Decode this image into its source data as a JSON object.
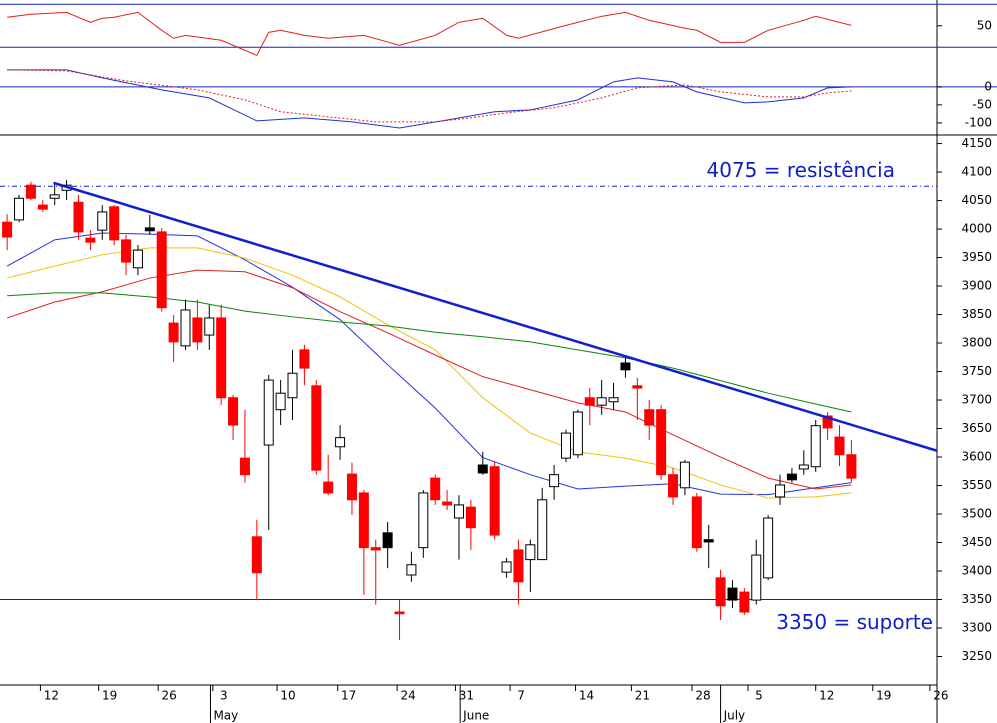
{
  "chart_data": [
    {
      "type": "line",
      "ylim": [
        20,
        74
      ],
      "yticks": [
        50
      ],
      "levels": [
        30,
        70
      ],
      "series": [
        {
          "color": "#e02020",
          "x": [
            0,
            2,
            5,
            7,
            8,
            9,
            11,
            13,
            14,
            15,
            18,
            21,
            22,
            23,
            25,
            27,
            30,
            33,
            36,
            38,
            40,
            42,
            43,
            47,
            50,
            52,
            54,
            57,
            58,
            60,
            62,
            64,
            67,
            68,
            71
          ],
          "values": [
            57.9,
            60.7,
            62.5,
            53.2,
            57,
            57.9,
            62.5,
            45.8,
            38.4,
            41.1,
            36.5,
            22.5,
            43.9,
            45.8,
            41.1,
            38.4,
            41.1,
            31.8,
            41.1,
            53.2,
            57,
            41.1,
            38.4,
            50.4,
            58.8,
            62.5,
            55.1,
            47.7,
            45.8,
            34.6,
            34.6,
            45.8,
            55.1,
            58.8,
            50.4
          ]
        }
      ]
    },
    {
      "type": "line",
      "ylim": [
        -128,
        69
      ],
      "yticks": [
        0,
        -50,
        -100
      ],
      "levels": [
        0
      ],
      "series": [
        {
          "color": "#2030d0",
          "x": [
            0,
            5,
            8,
            13,
            17,
            21,
            25,
            29,
            33,
            37,
            41,
            44,
            48,
            51,
            53,
            56,
            58,
            62,
            64,
            67,
            69,
            71
          ],
          "values": [
            47.2,
            47.2,
            25,
            -8.3,
            -30.6,
            -94.4,
            -86,
            -97,
            -114,
            -92,
            -69,
            -64,
            -36,
            13.9,
            25,
            13.9,
            -13.9,
            -44.4,
            -41.7,
            -30.6,
            -2.8,
            0
          ]
        },
        {
          "color": "#e02020",
          "dash": true,
          "x": [
            0,
            5,
            10,
            16,
            20,
            23,
            27,
            31,
            36,
            39,
            42,
            46,
            50,
            53,
            57,
            60,
            64,
            67,
            69,
            71
          ],
          "values": [
            47.2,
            44.4,
            16.7,
            -8.3,
            -36,
            -69,
            -83,
            -97,
            -97,
            -86,
            -72,
            -58,
            -30.6,
            -2.8,
            5.6,
            -13.9,
            -27.8,
            -27.8,
            -16.7,
            -11.1
          ]
        }
      ]
    },
    {
      "type": "candlestick",
      "xlim": [
        -0.6,
        78.2
      ],
      "ylim": [
        3200,
        4165
      ],
      "yticks": [
        3250,
        3300,
        3350,
        3400,
        3450,
        3500,
        3550,
        3600,
        3650,
        3700,
        3750,
        3800,
        3850,
        3900,
        3950,
        4000,
        4050,
        4100,
        4150
      ],
      "xticks": [
        {
          "value": 2.8,
          "label": "12"
        },
        {
          "value": 7.7,
          "label": "19"
        },
        {
          "value": 12.7,
          "label": "26"
        },
        {
          "value": 17.3,
          "label": "3"
        },
        {
          "value": 22.7,
          "label": "10"
        },
        {
          "value": 27.8,
          "label": "17"
        },
        {
          "value": 32.8,
          "label": "24"
        },
        {
          "value": 37.7,
          "label": "31"
        },
        {
          "value": 42.3,
          "label": "7"
        },
        {
          "value": 47.8,
          "label": "14"
        },
        {
          "value": 52.5,
          "label": "21"
        },
        {
          "value": 57.6,
          "label": "28"
        },
        {
          "value": 62.3,
          "label": "5"
        },
        {
          "value": 68,
          "label": "12"
        },
        {
          "value": 72.8,
          "label": "19"
        },
        {
          "value": 77.6,
          "label": "26"
        }
      ],
      "months": [
        {
          "value": 17.1,
          "label": "May"
        },
        {
          "value": 38.1,
          "label": "June"
        },
        {
          "value": 60,
          "label": "July"
        }
      ],
      "open": [
        4012,
        4016,
        4077,
        4042,
        4054,
        4068,
        4047,
        3984,
        3998,
        4039,
        3981,
        3932,
        4002,
        3995,
        3835,
        3795,
        3844,
        3814,
        3844,
        3704,
        3598,
        3460,
        3621,
        3683,
        3704,
        3788,
        3725,
        3556,
        3618,
        3570,
        3537,
        3441,
        3467,
        3328,
        3393,
        3441,
        3563,
        3521,
        3493,
        3512,
        3586,
        3583,
        3398,
        3437,
        3420,
        3420,
        3548,
        3598,
        3604,
        3704,
        3691,
        3697,
        3765,
        3725,
        3683,
        3683,
        3569,
        3546,
        3530,
        3455,
        3388,
        3370,
        3363,
        3349,
        3388,
        3530,
        3570,
        3579,
        3583,
        3672,
        3635,
        3604
      ],
      "high": [
        4026,
        4060,
        4083,
        4051,
        4081,
        4086,
        4060,
        3998,
        4042,
        4042,
        3990,
        3972,
        4025,
        4002,
        3849,
        3876,
        3876,
        3867,
        3867,
        3709,
        3683,
        3490,
        3744,
        3735,
        3788,
        3797,
        3735,
        3604,
        3656,
        3590,
        3542,
        3455,
        3486,
        3349,
        3434,
        3542,
        3569,
        3542,
        3533,
        3525,
        3609,
        3591,
        3423,
        3455,
        3455,
        3546,
        3586,
        3648,
        3683,
        3721,
        3735,
        3730,
        3779,
        3739,
        3700,
        3691,
        3581,
        3595,
        3537,
        3481,
        3402,
        3384,
        3370,
        3455,
        3498,
        3569,
        3581,
        3612,
        3665,
        3679,
        3656,
        3630
      ],
      "low": [
        3963,
        4012,
        4051,
        4030,
        4042,
        4051,
        3981,
        3963,
        3981,
        3972,
        3919,
        3919,
        3990,
        3855,
        3767,
        3788,
        3788,
        3788,
        3691,
        3630,
        3555,
        3349,
        3472,
        3656,
        3665,
        3726,
        3569,
        3533,
        3595,
        3498,
        3358,
        3341,
        3405,
        3279,
        3381,
        3423,
        3516,
        3507,
        3420,
        3437,
        3569,
        3455,
        3388,
        3341,
        3363,
        3420,
        3525,
        3591,
        3598,
        3656,
        3674,
        3683,
        3739,
        3665,
        3630,
        3560,
        3516,
        3533,
        3434,
        3405,
        3314,
        3335,
        3323,
        3341,
        3384,
        3516,
        3555,
        3569,
        3574,
        3630,
        3584,
        3556
      ],
      "close": [
        3986,
        4054,
        4054,
        4035,
        4060,
        4077,
        3995,
        3977,
        4030,
        3981,
        3942,
        3963,
        3997,
        3862,
        3802,
        3858,
        3802,
        3844,
        3704,
        3656,
        3569,
        3397,
        3735,
        3712,
        3747,
        3756,
        3577,
        3537,
        3634,
        3525,
        3441,
        3437,
        3441,
        3325,
        3411,
        3537,
        3525,
        3516,
        3516,
        3476,
        3572,
        3463,
        3416,
        3381,
        3446,
        3525,
        3569,
        3642,
        3679,
        3691,
        3704,
        3704,
        3753,
        3721,
        3656,
        3569,
        3530,
        3591,
        3441,
        3451,
        3339,
        3349,
        3328,
        3428,
        3493,
        3551,
        3560,
        3586,
        3655,
        3651,
        3604,
        3563
      ],
      "colors": [
        "red",
        "black",
        "red",
        "red",
        "black",
        "black",
        "red",
        "red",
        "black",
        "red",
        "red",
        "black",
        "black",
        "red",
        "red",
        "black",
        "red",
        "black",
        "red",
        "red",
        "red",
        "red",
        "black",
        "black",
        "black",
        "red",
        "red",
        "red",
        "black",
        "red",
        "red",
        "red",
        "black",
        "red",
        "black",
        "black",
        "red",
        "red",
        "black",
        "red",
        "black",
        "red",
        "black",
        "red",
        "black",
        "black",
        "black",
        "black",
        "black",
        "red",
        "black",
        "black",
        "black",
        "red",
        "red",
        "red",
        "red",
        "black",
        "red",
        "black",
        "red",
        "black",
        "red",
        "black",
        "black",
        "black",
        "black",
        "black",
        "black",
        "red",
        "red",
        "red"
      ],
      "lines": [
        {
          "color": "#2233dd",
          "x": [
            0,
            4,
            8,
            12,
            16,
            20,
            24,
            28,
            32,
            36,
            40,
            44,
            48,
            52,
            56,
            60,
            64,
            68,
            71
          ],
          "values": [
            3935,
            3981,
            3993,
            3991,
            3988,
            3946,
            3898,
            3841,
            3762,
            3686,
            3599,
            3569,
            3544,
            3549,
            3553,
            3535,
            3534,
            3546,
            3555
          ]
        },
        {
          "color": "#f5c000",
          "x": [
            0,
            4,
            8,
            12,
            16,
            20,
            24,
            28,
            32,
            36,
            40,
            44,
            48,
            52,
            56,
            60,
            64,
            68,
            71
          ],
          "values": [
            3914,
            3935,
            3955,
            3967,
            3967,
            3949,
            3919,
            3881,
            3832,
            3788,
            3704,
            3642,
            3609,
            3598,
            3581,
            3551,
            3528,
            3530,
            3537
          ]
        },
        {
          "color": "#e02020",
          "x": [
            0,
            4,
            8,
            12,
            16,
            20,
            24,
            28,
            32,
            36,
            40,
            44,
            48,
            52,
            56,
            60,
            64,
            68,
            71
          ],
          "values": [
            3844,
            3872,
            3890,
            3914,
            3928,
            3925,
            3897,
            3855,
            3818,
            3779,
            3741,
            3718,
            3695,
            3679,
            3639,
            3600,
            3563,
            3544,
            3551
          ]
        },
        {
          "color": "#108010",
          "x": [
            0,
            4,
            8,
            12,
            16,
            20,
            24,
            28,
            32,
            36,
            40,
            44,
            48,
            52,
            56,
            60,
            64,
            68,
            71
          ],
          "values": [
            3883,
            3888,
            3888,
            3881,
            3872,
            3856,
            3846,
            3837,
            3830,
            3819,
            3811,
            3802,
            3788,
            3774,
            3756,
            3734,
            3712,
            3693,
            3679
          ]
        }
      ],
      "trendline": {
        "color": "#1020d0",
        "x": [
          3.9,
          78.2
        ],
        "y": [
          4081,
          3611
        ]
      },
      "hlines": [
        {
          "value": 4075,
          "label": "4075 = resistência",
          "dash": true
        },
        {
          "value": 3350,
          "label": "3350 = suporte"
        }
      ]
    }
  ]
}
